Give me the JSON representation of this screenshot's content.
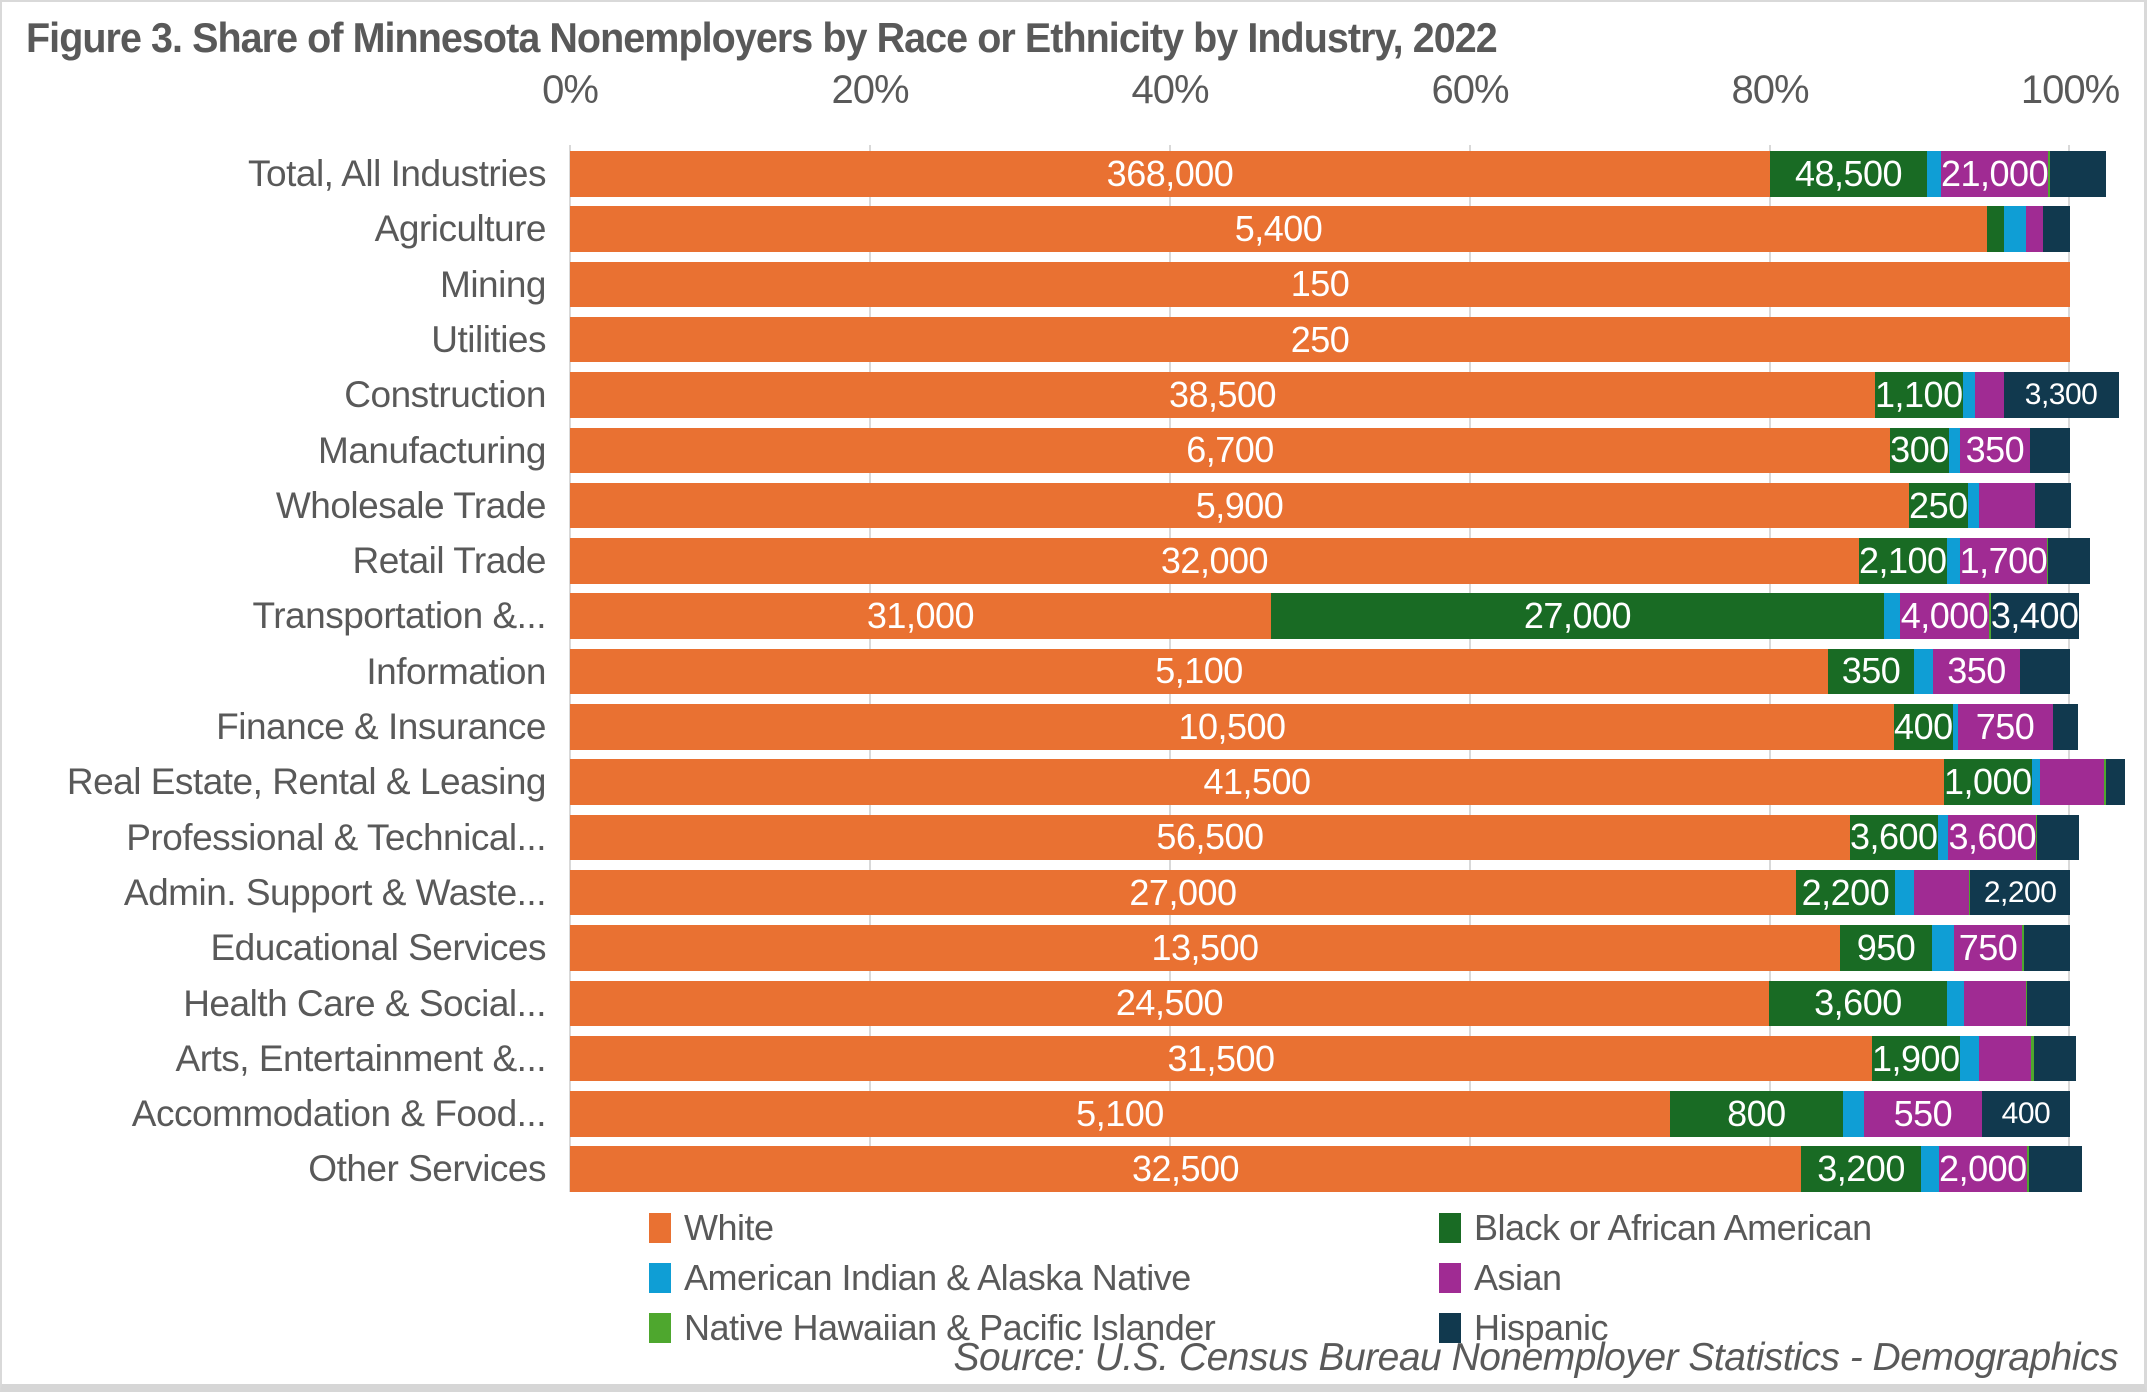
{
  "figure": {
    "title": "Figure 3. Share of Minnesota Nonemployers by Race or Ethnicity by Industry, 2022",
    "source": "Source: U.S. Census Bureau Nonemployer Statistics - Demographics"
  },
  "colors": {
    "white_series": "#E97132",
    "black_series": "#196B24",
    "aian_series": "#0F9ED5",
    "asian_series": "#A02B93",
    "nhpi_series": "#4EA72E",
    "hispanic_series": "#11394E",
    "gridline": "#D9D9D9",
    "text": "#595959"
  },
  "chart_data": {
    "type": "bar",
    "stacked": true,
    "orientation": "horizontal",
    "units": "percent share of nonemployers (bar labels show counts)",
    "grid": true,
    "legend_position": "bottom",
    "x_axis": {
      "range": [
        0,
        100
      ],
      "ticks": [
        "0%",
        "20%",
        "40%",
        "60%",
        "80%",
        "100%"
      ]
    },
    "categories": [
      "Total, All Industries",
      "Agriculture",
      "Mining",
      "Utilities",
      "Construction",
      "Manufacturing",
      "Wholesale Trade",
      "Retail Trade",
      "Transportation &...",
      "Information",
      "Finance & Insurance",
      "Real Estate, Rental & Leasing",
      "Professional & Technical...",
      "Admin. Support & Waste...",
      "Educational Services",
      "Health Care & Social...",
      "Arts, Entertainment &...",
      "Accommodation & Food...",
      "Other Services"
    ],
    "series": [
      {
        "key": "white",
        "name": "White",
        "color": "#E97132",
        "pct": [
          80.0,
          94.47,
          100,
          100,
          87.0,
          88.0,
          89.27,
          85.93,
          46.73,
          83.87,
          88.27,
          91.6,
          85.33,
          81.73,
          84.67,
          79.93,
          86.8,
          73.33,
          82.07
        ],
        "value_labels": [
          "368,000",
          "5,400",
          "150",
          "250",
          "38,500",
          "6,700",
          "5,900",
          "32,000",
          "31,000",
          "5,100",
          "10,500",
          "41,500",
          "56,500",
          "27,000",
          "13,500",
          "24,500",
          "31,500",
          "5,100",
          "32,500"
        ]
      },
      {
        "key": "black",
        "name": "Black or African American",
        "color": "#196B24",
        "pct": [
          10.47,
          1.13,
          0,
          0,
          2.6,
          3.93,
          3.87,
          5.8,
          40.87,
          5.73,
          3.4,
          2.13,
          5.6,
          6.6,
          6.13,
          11.87,
          5.47,
          11.53,
          8.0
        ],
        "value_labels": [
          "48,500",
          null,
          null,
          null,
          "1,100",
          "300",
          "250",
          "2,100",
          "27,000",
          "350",
          "400",
          "1,000",
          "3,600",
          "2,200",
          "950",
          "3,600",
          "1,900",
          "800",
          "3,200"
        ]
      },
      {
        "key": "aian",
        "name": "American Indian & Alaska Native",
        "color": "#0F9ED5",
        "pct": [
          0.93,
          1.47,
          0,
          0,
          0.8,
          0.73,
          0.73,
          0.87,
          1.07,
          1.27,
          0.33,
          0.53,
          0.73,
          1.27,
          1.47,
          1.13,
          1.27,
          1.4,
          1.2
        ],
        "value_labels": [
          null,
          null,
          null,
          null,
          null,
          null,
          null,
          null,
          null,
          null,
          null,
          null,
          null,
          null,
          null,
          null,
          null,
          null,
          null
        ]
      },
      {
        "key": "asian",
        "name": "Asian",
        "color": "#A02B93",
        "pct": [
          4.73,
          1.13,
          0,
          0,
          1.93,
          4.67,
          3.73,
          4.53,
          5.93,
          5.8,
          6.33,
          4.33,
          5.47,
          3.67,
          4.53,
          4.13,
          3.47,
          7.87,
          5.07
        ],
        "value_labels": [
          "21,000",
          null,
          null,
          null,
          null,
          "350",
          null,
          "1,700",
          "4,000",
          "350",
          "750",
          null,
          "3,600",
          null,
          "750",
          null,
          null,
          "550",
          "2,000"
        ]
      },
      {
        "key": "nhpi",
        "name": "Native Hawaiian & Pacific Islander",
        "color": "#4EA72E",
        "pct": [
          0.1,
          0,
          0,
          0,
          0,
          0,
          0,
          0.07,
          0.13,
          0,
          0,
          0.13,
          0.07,
          0.07,
          0.13,
          0.07,
          0.2,
          0,
          0.13
        ],
        "value_labels": [
          null,
          null,
          null,
          null,
          null,
          null,
          null,
          null,
          null,
          null,
          null,
          null,
          null,
          null,
          null,
          null,
          null,
          null,
          null
        ]
      },
      {
        "key": "hispanic",
        "name": "Hispanic",
        "color": "#11394E",
        "pct": [
          3.77,
          1.8,
          0,
          0,
          7.67,
          2.67,
          2.4,
          2.8,
          5.27,
          3.33,
          1.67,
          1.27,
          2.8,
          6.67,
          3.07,
          2.87,
          2.8,
          5.87,
          3.53
        ],
        "value_labels": [
          null,
          null,
          null,
          null,
          {
            "t": "3,300",
            "small": true
          },
          null,
          null,
          null,
          "3,400",
          null,
          null,
          null,
          null,
          {
            "t": "2,200",
            "small": true
          },
          null,
          null,
          null,
          {
            "t": "400",
            "small": true
          },
          null
        ]
      }
    ]
  }
}
